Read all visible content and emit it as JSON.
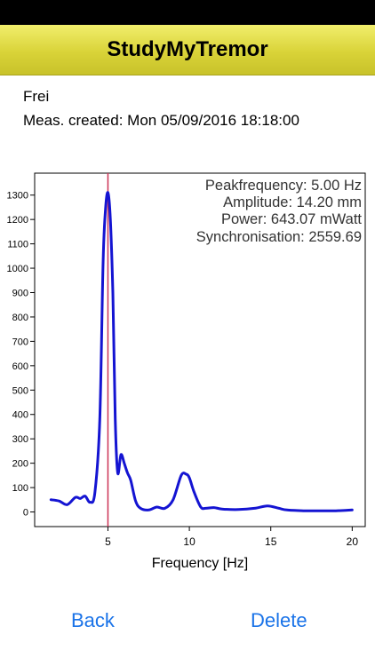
{
  "app": {
    "title": "StudyMyTremor"
  },
  "measurement": {
    "name": "Frei",
    "created_label": "Meas. created: Mon 05/09/2016 18:18:00"
  },
  "stats": {
    "peak": "Peakfrequency: 5.00 Hz",
    "amplitude": "Amplitude: 14.20 mm",
    "power": "Power: 643.07 mWatt",
    "sync": "Synchronisation: 2559.69"
  },
  "chart_data": {
    "type": "line",
    "xlabel": "Frequency [Hz]",
    "ylabel": "",
    "xlim": [
      0.5,
      20.8
    ],
    "ylim": [
      -60,
      1390
    ],
    "xticks": [
      5,
      10,
      15,
      20
    ],
    "yticks": [
      0,
      100,
      200,
      300,
      400,
      500,
      600,
      700,
      800,
      900,
      1000,
      1100,
      1200,
      1300
    ],
    "marker_x": 5,
    "colors": {
      "line": "#1414d2",
      "marker": "#cc3355"
    },
    "series": [
      {
        "x": [
          1.5,
          2.0,
          2.5,
          3.0,
          3.3,
          3.6,
          3.9,
          4.2,
          4.5,
          4.7,
          4.85,
          5.0,
          5.15,
          5.3,
          5.45,
          5.6,
          5.8,
          6.0,
          6.2,
          6.4,
          6.7,
          7.0,
          7.5,
          8.0,
          8.5,
          9.0,
          9.5,
          9.8,
          10.0,
          10.3,
          10.7,
          11.0,
          11.5,
          12.0,
          13.0,
          14.0,
          14.8,
          15.5,
          16.0,
          17.0,
          18.0,
          19.0,
          20.0
        ],
        "values": [
          50,
          45,
          30,
          60,
          55,
          65,
          40,
          80,
          380,
          1020,
          1240,
          1310,
          1200,
          900,
          380,
          160,
          235,
          200,
          160,
          130,
          45,
          15,
          8,
          20,
          15,
          50,
          150,
          155,
          140,
          80,
          20,
          15,
          18,
          12,
          10,
          15,
          25,
          15,
          8,
          5,
          5,
          5,
          8
        ]
      }
    ]
  },
  "actions": {
    "back": "Back",
    "delete": "Delete"
  }
}
